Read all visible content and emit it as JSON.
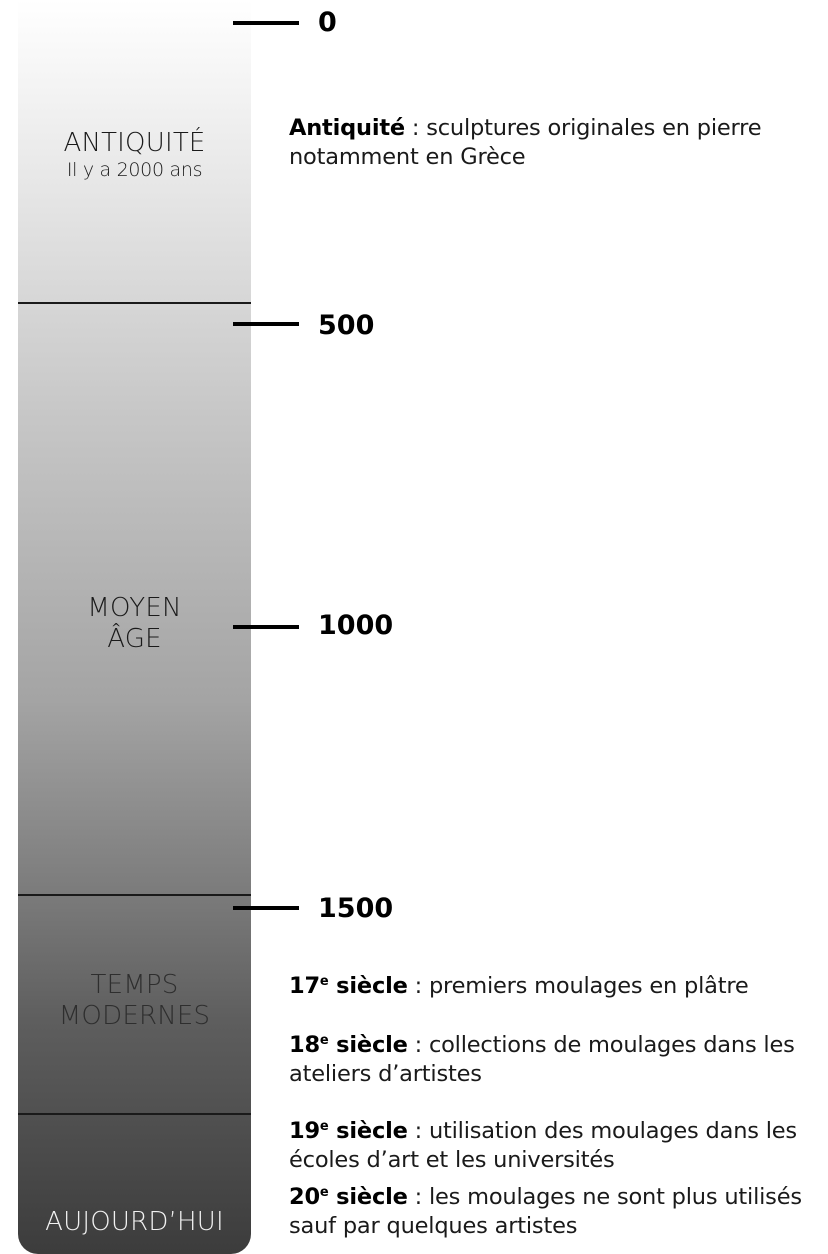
{
  "eras": [
    {
      "name": "ANTIQUITÉ",
      "sub": "Il y a 2000 ans"
    },
    {
      "name_line1": "MOYEN",
      "name_line2": "ÂGE"
    },
    {
      "name_line1": "TEMPS",
      "name_line2": "MODERNES"
    },
    {
      "name": "AUJOURD’HUI"
    }
  ],
  "years": [
    "0",
    "500",
    "1000",
    "1500"
  ],
  "notes": [
    {
      "bold": "Antiquité",
      "text": " : sculptures originales en pierre notamment en Grèce"
    },
    {
      "num": "17",
      "sup": "e",
      "bold_rest": " siècle",
      "text": " : premiers moulages en plâtre"
    },
    {
      "num": "18",
      "sup": "e",
      "bold_rest": " siècle",
      "text": " : collections de moulages dans les ateliers d’artistes"
    },
    {
      "num": "19",
      "sup": "e",
      "bold_rest": " siècle",
      "text": " : utilisation des moulages dans les écoles d’art et les universités"
    },
    {
      "num": "20",
      "sup": "e",
      "bold_rest": " siècle",
      "text": " : les moulages ne sont plus utilisés sauf par quelques artistes"
    }
  ]
}
